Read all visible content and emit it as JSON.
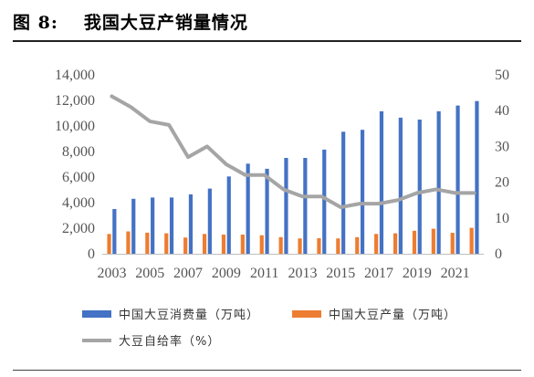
{
  "figure": {
    "label": "图 8:",
    "title": "我国大豆产销量情况"
  },
  "chart_data": {
    "type": "bar+line",
    "x": [
      2003,
      2004,
      2005,
      2006,
      2007,
      2008,
      2009,
      2010,
      2011,
      2012,
      2013,
      2014,
      2015,
      2016,
      2017,
      2018,
      2019,
      2020,
      2021,
      2022
    ],
    "x_tick_labels": [
      "2003",
      "2005",
      "2007",
      "2009",
      "2011",
      "2013",
      "2015",
      "2017",
      "2019",
      "2021"
    ],
    "series": [
      {
        "name": "中国大豆消费量（万吨）",
        "type": "bar",
        "axis": "left",
        "color": "#4472C4",
        "values": [
          3500,
          4300,
          4400,
          4400,
          4650,
          5100,
          6050,
          7050,
          6650,
          7500,
          7500,
          8150,
          9550,
          9700,
          11150,
          10650,
          10500,
          11150,
          11600,
          11950
        ]
      },
      {
        "name": "中国大豆产量（万吨）",
        "type": "bar",
        "axis": "left",
        "color": "#ED7D31",
        "values": [
          1550,
          1750,
          1650,
          1600,
          1270,
          1550,
          1500,
          1500,
          1450,
          1300,
          1200,
          1220,
          1200,
          1300,
          1550,
          1600,
          1800,
          1960,
          1640,
          2030
        ]
      },
      {
        "name": "大豆自给率（%）",
        "type": "line",
        "axis": "right",
        "color": "#A5A5A5",
        "values": [
          44,
          41,
          37,
          36,
          27,
          30,
          25,
          22,
          22,
          18,
          16,
          16,
          13,
          14,
          14,
          15,
          17,
          18,
          17,
          17
        ]
      }
    ],
    "y_left": {
      "min": 0,
      "max": 14000,
      "ticks": [
        "0",
        "2,000",
        "4,000",
        "6,000",
        "8,000",
        "10,000",
        "12,000",
        "14,000"
      ]
    },
    "y_right": {
      "min": 0,
      "max": 50,
      "ticks": [
        "0",
        "10",
        "20",
        "30",
        "40",
        "50"
      ]
    },
    "grid": false,
    "legend_position": "bottom"
  }
}
